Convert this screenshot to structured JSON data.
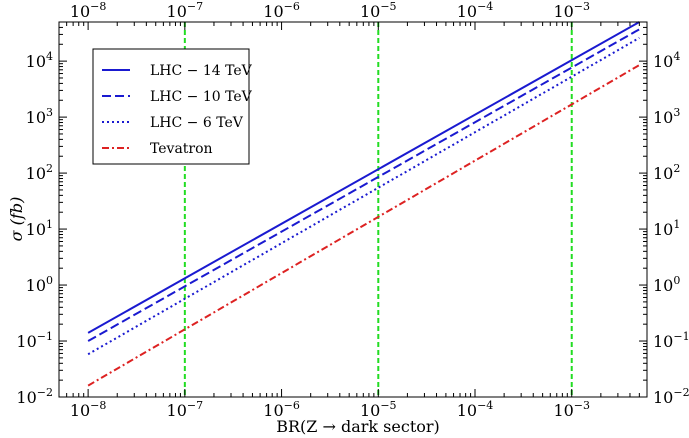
{
  "chart_data": {
    "type": "line",
    "title": "",
    "xlabel": "BR(Z → dark sector)",
    "ylabel": "σ (fb)",
    "x_scale": "log",
    "y_scale": "log",
    "xlim": [
      5e-09,
      0.006
    ],
    "ylim": [
      0.01,
      50000
    ],
    "x_ticks": [
      {
        "base": "10",
        "exp": "−8",
        "value": 1e-08
      },
      {
        "base": "10",
        "exp": "−7",
        "value": 1e-07
      },
      {
        "base": "10",
        "exp": "−6",
        "value": 1e-06
      },
      {
        "base": "10",
        "exp": "−5",
        "value": 1e-05
      },
      {
        "base": "10",
        "exp": "−4",
        "value": 0.0001
      },
      {
        "base": "10",
        "exp": "−3",
        "value": 0.001
      }
    ],
    "y_ticks": [
      {
        "base": "10",
        "exp": "−2",
        "value": 0.01
      },
      {
        "base": "10",
        "exp": "−1",
        "value": 0.1
      },
      {
        "base": "10",
        "exp": "0",
        "value": 1
      },
      {
        "base": "10",
        "exp": "1",
        "value": 10
      },
      {
        "base": "10",
        "exp": "2",
        "value": 100
      },
      {
        "base": "10",
        "exp": "3",
        "value": 1000
      },
      {
        "base": "10",
        "exp": "4",
        "value": 10000
      }
    ],
    "vertical_lines": [
      {
        "x": 1e-07,
        "color": "#22dd22"
      },
      {
        "x": 1e-05,
        "color": "#22dd22"
      },
      {
        "x": 0.001,
        "color": "#22dd22"
      }
    ],
    "legend_position": "top-left",
    "series": [
      {
        "name": "LHC − 14 TeV",
        "color": "#1a1ad0",
        "dash": "solid",
        "x": [
          1e-08,
          0.005
        ],
        "y": [
          0.14,
          50000
        ]
      },
      {
        "name": "LHC − 10 TeV",
        "color": "#1a1ad0",
        "dash": "dashed",
        "x": [
          1e-08,
          0.005
        ],
        "y": [
          0.1,
          37000
        ]
      },
      {
        "name": "LHC − 6 TeV",
        "color": "#1a1ad0",
        "dash": "dotted",
        "x": [
          1e-08,
          0.005
        ],
        "y": [
          0.058,
          26000
        ]
      },
      {
        "name": "Tevatron",
        "color": "#dd2222",
        "dash": "dashdot",
        "x": [
          1e-08,
          0.005
        ],
        "y": [
          0.016,
          8500
        ]
      }
    ]
  }
}
